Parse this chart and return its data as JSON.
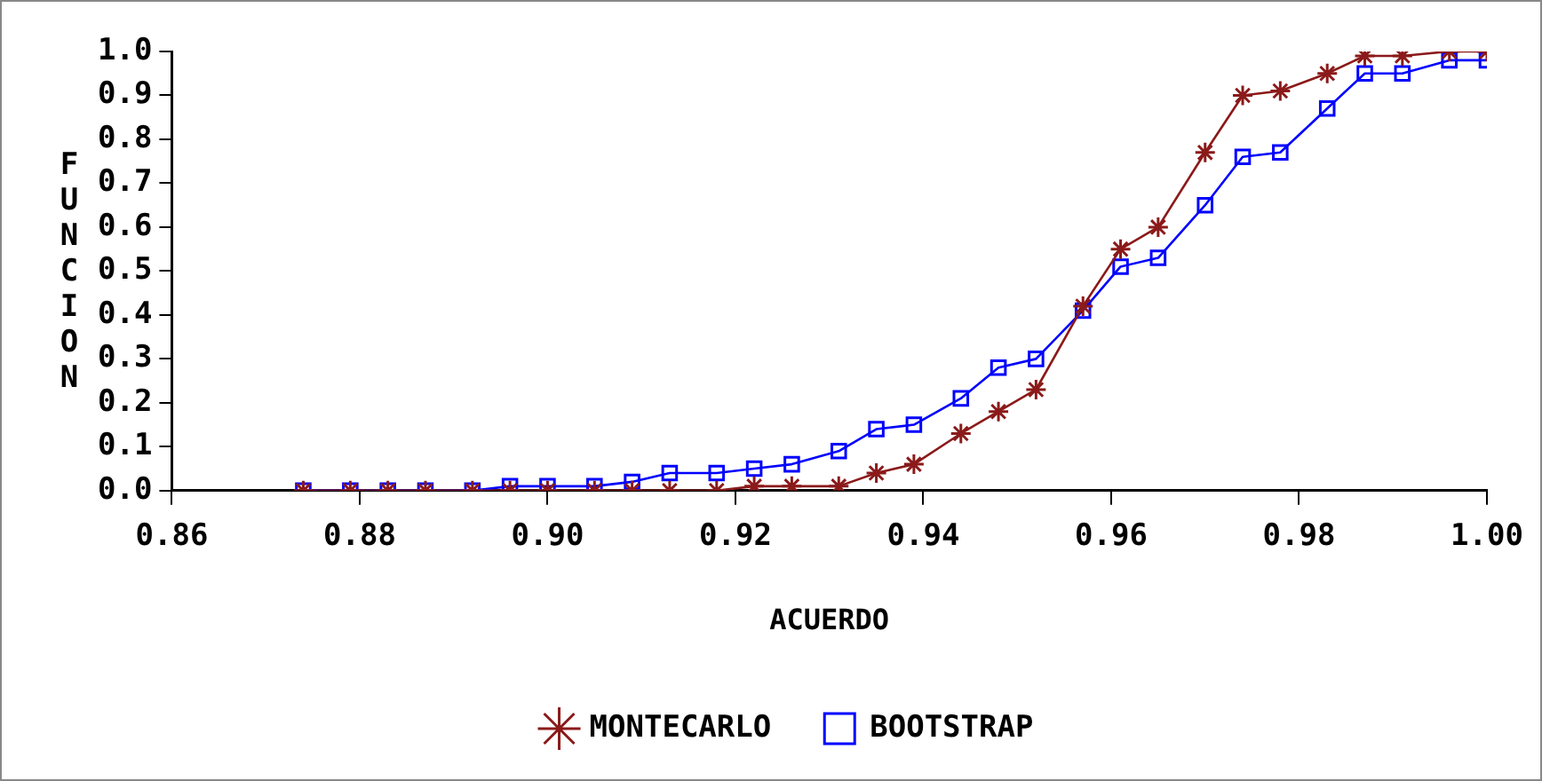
{
  "chart_data": {
    "type": "line",
    "xlabel": "ACUERDO",
    "ylabel": "FUNCION",
    "x": [
      0.874,
      0.879,
      0.883,
      0.887,
      0.892,
      0.896,
      0.9,
      0.905,
      0.909,
      0.913,
      0.918,
      0.922,
      0.926,
      0.931,
      0.935,
      0.939,
      0.944,
      0.948,
      0.952,
      0.957,
      0.961,
      0.965,
      0.97,
      0.974,
      0.978,
      0.983,
      0.987,
      0.991,
      0.996,
      1.0
    ],
    "series": [
      {
        "name": "MONTECARLO",
        "color": "#8b1a1a",
        "marker": "cross",
        "values": [
          0,
          0,
          0,
          0,
          0,
          0,
          0,
          0,
          0,
          0,
          0,
          0.01,
          0.01,
          0.01,
          0.04,
          0.06,
          0.13,
          0.18,
          0.23,
          0.42,
          0.55,
          0.6,
          0.77,
          0.9,
          0.91,
          0.95,
          0.99,
          0.99,
          1.0,
          1.0
        ]
      },
      {
        "name": "BOOTSTRAP",
        "color": "#0000ff",
        "marker": "square",
        "values": [
          0,
          0,
          0,
          0,
          0,
          0.01,
          0.01,
          0.01,
          0.02,
          0.04,
          0.04,
          0.05,
          0.06,
          0.09,
          0.14,
          0.15,
          0.21,
          0.28,
          0.3,
          0.41,
          0.51,
          0.53,
          0.65,
          0.76,
          0.77,
          0.87,
          0.95,
          0.95,
          0.98,
          0.98
        ]
      }
    ],
    "xlim": [
      0.86,
      1.0
    ],
    "xticks": [
      0.86,
      0.88,
      {
        "value": 0.9,
        "label": "0.90"
      },
      0.92,
      0.94,
      0.96,
      0.98,
      {
        "value": 1.0,
        "label": "1.00"
      }
    ],
    "ylim": [
      0,
      1.0
    ],
    "yticks": [
      {
        "value": 0,
        "label": "0.0"
      },
      0.1,
      0.2,
      0.3,
      0.4,
      0.5,
      0.6,
      0.7,
      0.8,
      0.9,
      {
        "value": 1.0,
        "label": "1.0"
      }
    ],
    "grid": false,
    "legend": "bottom",
    "line_style": "solid"
  }
}
